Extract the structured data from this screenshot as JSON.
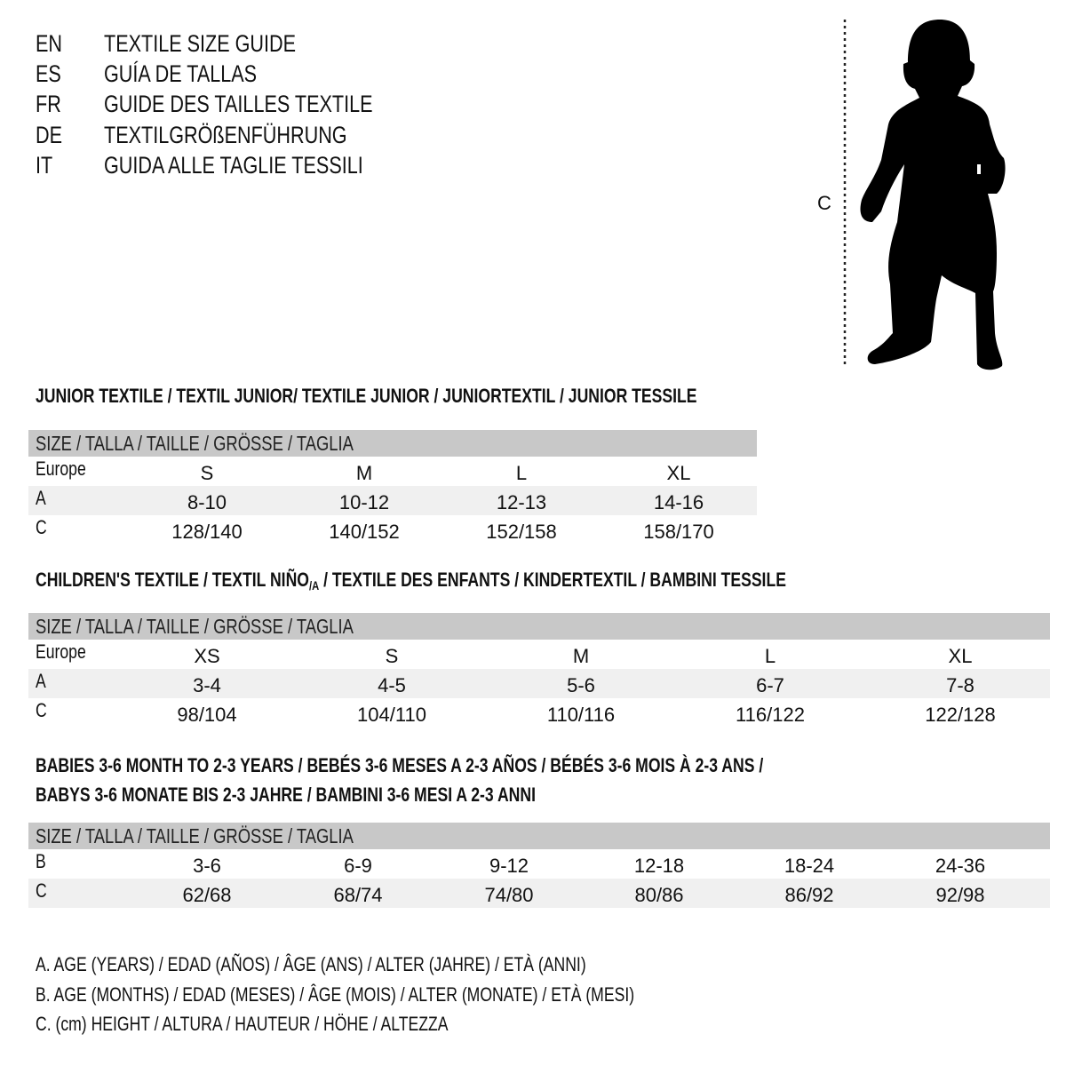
{
  "languages": [
    {
      "code": "EN",
      "title": "TEXTILE SIZE GUIDE"
    },
    {
      "code": "ES",
      "title": "GUÍA DE TALLAS"
    },
    {
      "code": "FR",
      "title": "GUIDE DES TAILLES TEXTILE"
    },
    {
      "code": "DE",
      "title": "TEXTILGRÖßENFÜHRUNG"
    },
    {
      "code": "IT",
      "title": "GUIDA ALLE TAGLIE TESSILI"
    }
  ],
  "figure": {
    "measure_label": "C",
    "icon": "child-silhouette"
  },
  "size_header": "SIZE / TALLA / TAILLE / GRÖSSE / TAGLIA",
  "colors": {
    "header_bg": "#c8c8c8",
    "shaded_row": "#f0f0f0"
  },
  "junior": {
    "heading": "JUNIOR TEXTILE / TEXTIL JUNIOR/ TEXTILE JUNIOR / JUNIORTEXTIL / JUNIOR TESSILE",
    "rows": [
      {
        "label": "Europe",
        "values": [
          "S",
          "M",
          "L",
          "XL"
        ]
      },
      {
        "label": "A",
        "values": [
          "8-10",
          "10-12",
          "12-13",
          "14-16"
        ]
      },
      {
        "label": "C",
        "values": [
          "128/140",
          "140/152",
          "152/158",
          "158/170"
        ]
      }
    ]
  },
  "children": {
    "heading_pre": "CHILDREN'S TEXTILE / TEXTIL NIÑO",
    "heading_sub": "/A",
    "heading_post": " / TEXTILE DES ENFANTS / KINDERTEXTIL / BAMBINI TESSILE",
    "rows": [
      {
        "label": "Europe",
        "values": [
          "XS",
          "S",
          "M",
          "L",
          "XL"
        ]
      },
      {
        "label": "A",
        "values": [
          "3-4",
          "4-5",
          "5-6",
          "6-7",
          "7-8"
        ]
      },
      {
        "label": "C",
        "values": [
          "98/104",
          "104/110",
          "110/116",
          "116/122",
          "122/128"
        ]
      }
    ]
  },
  "babies": {
    "heading_line1": "BABIES 3-6 MONTH TO 2-3 YEARS / BEBÉS 3-6 MESES A 2-3 AÑOS / BÉBÉS 3-6 MOIS À 2-3 ANS /",
    "heading_line2": "BABYS 3-6 MONATE BIS 2-3 JAHRE / BAMBINI 3-6 MESI A 2-3 ANNI",
    "rows": [
      {
        "label": "B",
        "values": [
          "3-6",
          "6-9",
          "9-12",
          "12-18",
          "18-24",
          "24-36"
        ]
      },
      {
        "label": "C",
        "values": [
          "62/68",
          "68/74",
          "74/80",
          "80/86",
          "86/92",
          "92/98"
        ]
      }
    ]
  },
  "legend": [
    "A. AGE (YEARS) / EDAD (AÑOS) / ÂGE (ANS) / ALTER (JAHRE) / ETÀ (ANNI)",
    "B. AGE (MONTHS) / EDAD (MESES) / ÂGE (MOIS) / ALTER (MONATE) / ETÀ (MESI)",
    "C. (cm) HEIGHT / ALTURA / HAUTEUR / HÖHE / ALTEZZA"
  ]
}
